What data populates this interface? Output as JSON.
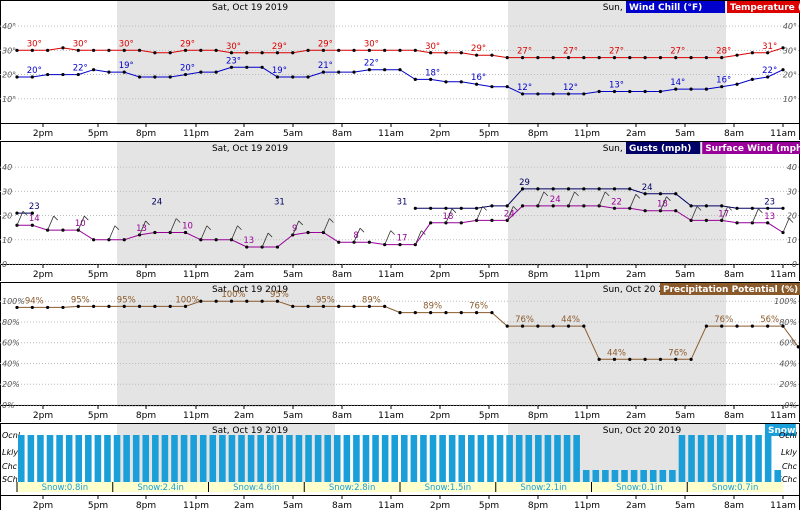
{
  "chart_data": [
    {
      "type": "line",
      "panel": "temperature",
      "day_labels": [
        "Sat, Oct 19 2019",
        "Sun, Oct 20 2019"
      ],
      "y_ticks": [
        "10°",
        "20°",
        "30°",
        "40°"
      ],
      "ylim": [
        0,
        45
      ],
      "x_tick_labels": [
        "2pm",
        "5pm",
        "8pm",
        "11pm",
        "2am",
        "5am",
        "8am",
        "11am",
        "2pm",
        "5pm",
        "8pm",
        "11pm",
        "2am",
        "5am",
        "8am",
        "11am"
      ],
      "legend": [
        {
          "label": "Wind Chill (°F)",
          "color": "#0000cc"
        },
        {
          "label": "Temperature (°F)",
          "color": "#dd0000"
        }
      ],
      "series": [
        {
          "name": "Temperature (°F)",
          "color": "#dd0000",
          "values": [
            30,
            30,
            30,
            31,
            30,
            30,
            30,
            30,
            30,
            29,
            29,
            30,
            30,
            30,
            29,
            29,
            29,
            29,
            29,
            30,
            30,
            30,
            30,
            30,
            30,
            30,
            30,
            29,
            29,
            29,
            28,
            28,
            27,
            27,
            27,
            27,
            27,
            27,
            27,
            27,
            27,
            27,
            27,
            27,
            27,
            27,
            27,
            28,
            29,
            29,
            31
          ],
          "labels": [
            "30°",
            "30°",
            "30°",
            "29°",
            "30°",
            "29°",
            "29°",
            "30°",
            "30°",
            "29°",
            "27°",
            "27°",
            "27°",
            "27°",
            "28°",
            "31°"
          ]
        },
        {
          "name": "Wind Chill (°F)",
          "color": "#0000cc",
          "values": [
            19,
            19,
            20,
            20,
            20,
            22,
            21,
            21,
            19,
            19,
            19,
            20,
            21,
            21,
            23,
            23,
            23,
            19,
            19,
            19,
            21,
            21,
            21,
            22,
            22,
            22,
            18,
            18,
            17,
            17,
            16,
            15,
            15,
            12,
            12,
            12,
            12,
            12,
            13,
            13,
            13,
            13,
            13,
            14,
            14,
            14,
            15,
            16,
            18,
            19,
            22
          ],
          "labels": [
            "20°",
            "22°",
            "19°",
            "20°",
            "23°",
            "19°",
            "21°",
            "22°",
            "18°",
            "16°",
            "12°",
            "12°",
            "13°",
            "14°",
            "16°",
            "22°"
          ]
        }
      ]
    },
    {
      "type": "line",
      "panel": "wind",
      "y_ticks": [
        "0",
        "10",
        "20",
        "30",
        "40"
      ],
      "ylim": [
        0,
        45
      ],
      "legend": [
        {
          "label": "Gusts (mph)",
          "color": "#000066"
        },
        {
          "label": "Surface Wind (mph)",
          "color": "#990099"
        }
      ],
      "series": [
        {
          "name": "Gusts (mph)",
          "color": "#000066",
          "values": [
            21,
            21,
            null,
            null,
            null,
            null,
            null,
            null,
            null,
            null,
            null,
            null,
            null,
            null,
            null,
            null,
            null,
            null,
            null,
            null,
            null,
            null,
            null,
            null,
            null,
            null,
            23,
            23,
            23,
            23,
            23,
            24,
            24,
            31,
            31,
            31,
            31,
            31,
            31,
            31,
            31,
            29,
            29,
            29,
            24,
            24,
            24,
            23,
            23,
            23,
            23
          ],
          "labels": [
            "23",
            "24",
            "31",
            "31",
            "29",
            "24",
            "23"
          ]
        },
        {
          "name": "Surface Wind (mph)",
          "color": "#990099",
          "values": [
            16,
            16,
            14,
            14,
            14,
            10,
            10,
            10,
            12,
            13,
            13,
            13,
            10,
            10,
            10,
            7,
            7,
            7,
            12,
            13,
            13,
            9,
            9,
            9,
            8,
            8,
            8,
            17,
            17,
            17,
            18,
            18,
            18,
            24,
            24,
            24,
            24,
            24,
            24,
            23,
            23,
            22,
            22,
            22,
            18,
            18,
            18,
            17,
            17,
            17,
            13
          ],
          "labels": [
            "14",
            "10",
            "13",
            "10",
            "13",
            "9",
            "8",
            "17",
            "18",
            "24",
            "24",
            "22",
            "18",
            "17",
            "13"
          ]
        }
      ]
    },
    {
      "type": "line",
      "panel": "precipitation",
      "y_ticks": [
        "0%",
        "20%",
        "40%",
        "60%",
        "80%",
        "100%"
      ],
      "ylim": [
        0,
        105
      ],
      "legend": [
        {
          "label": "Precipitation Potential (%)",
          "color": "#8b5a2b"
        }
      ],
      "series": [
        {
          "name": "Precipitation Potential (%)",
          "color": "#8b5a2b",
          "values": [
            94,
            94,
            94,
            94,
            95,
            95,
            95,
            95,
            95,
            95,
            95,
            95,
            100,
            100,
            100,
            100,
            100,
            100,
            95,
            95,
            95,
            95,
            95,
            95,
            95,
            89,
            89,
            89,
            89,
            89,
            89,
            89,
            76,
            76,
            76,
            76,
            76,
            76,
            44,
            44,
            44,
            44,
            44,
            44,
            44,
            76,
            76,
            76,
            76,
            76,
            76,
            56
          ],
          "labels": [
            "94%",
            "95%",
            "95%",
            "100%",
            "100%",
            "95%",
            "95%",
            "89%",
            "89%",
            "76%",
            "76%",
            "44%",
            "44%",
            "76%",
            "76%",
            "56%"
          ]
        }
      ]
    },
    {
      "type": "bar",
      "panel": "snow",
      "y_ticks": [
        "Ocnl",
        "Lkly",
        "Chc",
        "SChc"
      ],
      "legend": [
        {
          "label": "Snow",
          "color": "#1a9fd8"
        }
      ],
      "values": [
        4,
        4,
        4,
        4,
        4,
        4,
        4,
        4,
        4,
        4,
        4,
        4,
        4,
        4,
        4,
        4,
        4,
        4,
        4,
        4,
        4,
        4,
        4,
        4,
        4,
        4,
        4,
        4,
        4,
        4,
        4,
        4,
        4,
        4,
        4,
        4,
        4,
        4,
        4,
        4,
        4,
        4,
        4,
        4,
        4,
        4,
        4,
        4,
        4,
        4,
        4,
        4,
        4,
        4,
        4,
        4,
        4,
        4,
        4,
        2,
        2,
        2,
        2,
        2,
        2,
        2,
        2,
        2,
        2,
        4,
        4,
        4,
        4,
        4,
        4,
        4,
        4,
        4,
        4,
        2
      ],
      "totals": [
        "Snow:0.8in",
        "Snow:2.4in",
        "Snow:4.6in",
        "Snow:2.8in",
        "Snow:1.5in",
        "Snow:2.1in",
        "Snow:0.1in",
        "Snow:0.7in"
      ]
    }
  ]
}
